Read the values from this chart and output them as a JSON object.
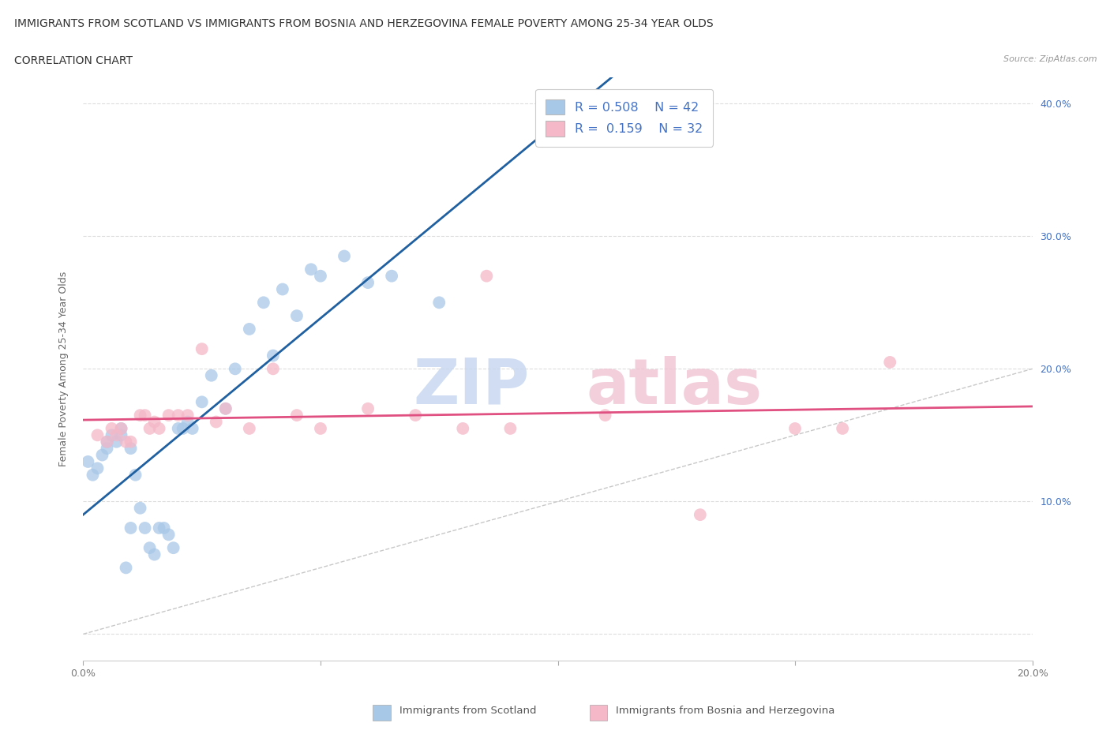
{
  "title_line1": "IMMIGRANTS FROM SCOTLAND VS IMMIGRANTS FROM BOSNIA AND HERZEGOVINA FEMALE POVERTY AMONG 25-34 YEAR OLDS",
  "title_line2": "CORRELATION CHART",
  "source_text": "Source: ZipAtlas.com",
  "ylabel": "Female Poverty Among 25-34 Year Olds",
  "xlim": [
    0.0,
    0.2
  ],
  "ylim": [
    -0.02,
    0.42
  ],
  "legend1_R": "0.508",
  "legend1_N": "42",
  "legend2_R": "0.159",
  "legend2_N": "32",
  "color_scotland": "#a8c8e8",
  "color_bosnia": "#f4b8c8",
  "regression_color_scotland": "#2060a0",
  "regression_color_bosnia": "#e05080",
  "diagonal_color": "#c8c8c8",
  "scotland_x": [
    0.001,
    0.002,
    0.003,
    0.004,
    0.005,
    0.005,
    0.006,
    0.007,
    0.008,
    0.008,
    0.009,
    0.01,
    0.01,
    0.011,
    0.012,
    0.013,
    0.014,
    0.015,
    0.016,
    0.017,
    0.018,
    0.019,
    0.02,
    0.021,
    0.022,
    0.023,
    0.025,
    0.027,
    0.03,
    0.032,
    0.035,
    0.038,
    0.04,
    0.042,
    0.045,
    0.048,
    0.05,
    0.055,
    0.06,
    0.065,
    0.075,
    0.1
  ],
  "scotland_y": [
    0.13,
    0.12,
    0.125,
    0.135,
    0.14,
    0.145,
    0.15,
    0.145,
    0.15,
    0.155,
    0.05,
    0.14,
    0.08,
    0.12,
    0.095,
    0.08,
    0.065,
    0.06,
    0.08,
    0.08,
    0.075,
    0.065,
    0.155,
    0.155,
    0.16,
    0.155,
    0.175,
    0.195,
    0.17,
    0.2,
    0.23,
    0.25,
    0.21,
    0.26,
    0.24,
    0.275,
    0.27,
    0.285,
    0.265,
    0.27,
    0.25,
    0.385
  ],
  "bosnia_x": [
    0.003,
    0.005,
    0.006,
    0.007,
    0.008,
    0.009,
    0.01,
    0.012,
    0.013,
    0.014,
    0.015,
    0.016,
    0.018,
    0.02,
    0.022,
    0.025,
    0.028,
    0.03,
    0.035,
    0.04,
    0.045,
    0.05,
    0.06,
    0.07,
    0.08,
    0.085,
    0.09,
    0.11,
    0.13,
    0.15,
    0.16,
    0.17
  ],
  "bosnia_y": [
    0.15,
    0.145,
    0.155,
    0.15,
    0.155,
    0.145,
    0.145,
    0.165,
    0.165,
    0.155,
    0.16,
    0.155,
    0.165,
    0.165,
    0.165,
    0.215,
    0.16,
    0.17,
    0.155,
    0.2,
    0.165,
    0.155,
    0.17,
    0.165,
    0.155,
    0.27,
    0.155,
    0.165,
    0.09,
    0.155,
    0.155,
    0.205
  ]
}
